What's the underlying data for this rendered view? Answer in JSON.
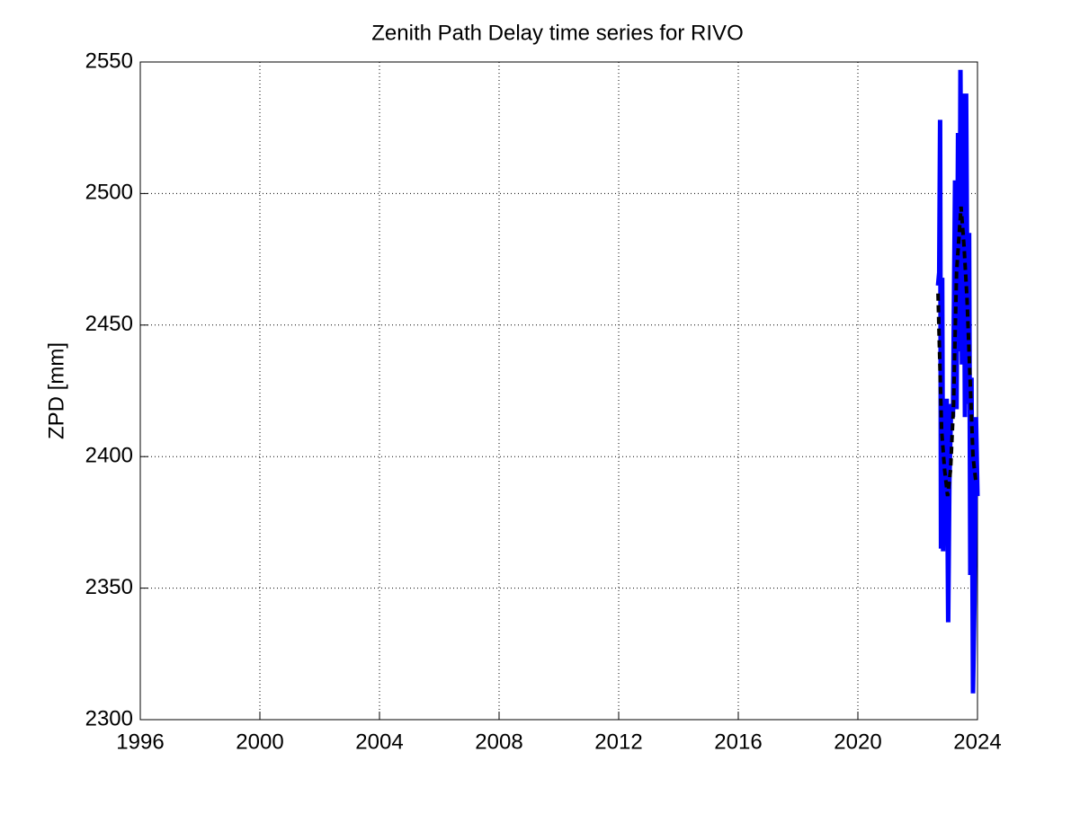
{
  "chart_data": {
    "type": "line",
    "title": "Zenith Path Delay time series for RIVO",
    "ylabel": "ZPD [mm]",
    "series": [
      {
        "color": "#0000ff",
        "style": "solid",
        "x": [
          2022.68,
          2022.72,
          2022.75,
          2022.78,
          2022.82,
          2022.85,
          2022.9,
          2022.93,
          2022.97,
          2023.02,
          2023.06,
          2023.12,
          2023.18,
          2023.25,
          2023.3,
          2023.35,
          2023.4,
          2023.43,
          2023.48,
          2023.53,
          2023.58,
          2023.62,
          2023.68,
          2023.72,
          2023.76,
          2023.8,
          2023.85,
          2023.9,
          2023.95,
          2024.0
        ],
        "values": [
          2465,
          2470,
          2528,
          2365,
          2468,
          2364,
          2420,
          2380,
          2422,
          2337,
          2390,
          2420,
          2415,
          2505,
          2418,
          2523,
          2440,
          2547,
          2435,
          2538,
          2415,
          2538,
          2420,
          2485,
          2355,
          2430,
          2310,
          2345,
          2415,
          2385
        ]
      },
      {
        "color": "#000000",
        "style": "dashed",
        "x": [
          2022.68,
          2022.8,
          2022.9,
          2023.0,
          2023.1,
          2023.2,
          2023.3,
          2023.45,
          2023.55,
          2023.65,
          2023.75,
          2023.85,
          2023.95
        ],
        "values": [
          2462,
          2410,
          2395,
          2385,
          2395,
          2420,
          2470,
          2495,
          2480,
          2460,
          2430,
          2400,
          2390
        ]
      }
    ],
    "xlim": [
      1996,
      2024
    ],
    "xticks": [
      1996,
      2000,
      2004,
      2008,
      2012,
      2016,
      2020,
      2024
    ],
    "ylim": [
      2300,
      2550
    ],
    "yticks": [
      2300,
      2350,
      2400,
      2450,
      2500,
      2550
    ],
    "grid": true
  }
}
